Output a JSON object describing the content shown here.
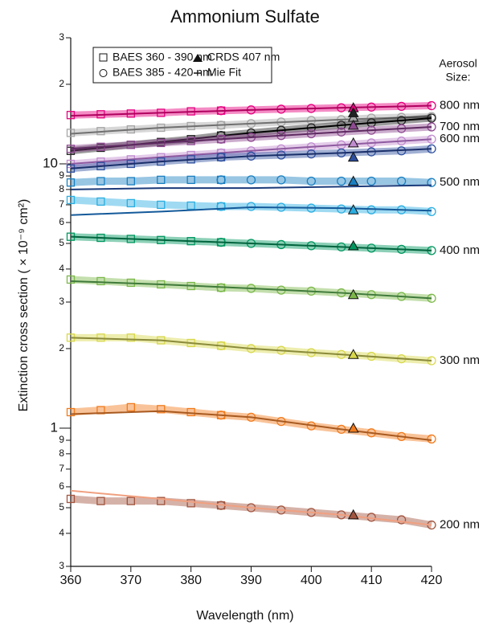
{
  "chart_data": {
    "type": "scatter",
    "title": "Ammonium Sulfate",
    "xlabel": "Wavelength (nm)",
    "ylabel": "Extinction cross section ( × 10⁻⁹ cm²)",
    "size_heading_lines": [
      "Aerosol",
      "Size:"
    ],
    "legend": [
      "BAES 360 - 390 nm",
      "BAES 385 - 420 nm",
      "CRDS 407 nm",
      "Mie Fit"
    ],
    "log_y": true,
    "xlim": [
      360,
      420
    ],
    "xticks": [
      360,
      370,
      380,
      390,
      400,
      410,
      420
    ],
    "ylim": [
      0.3,
      30
    ],
    "yticks": [
      {
        "value": 30,
        "label": "3"
      },
      {
        "value": 20,
        "label": "2"
      },
      10,
      9,
      8,
      7,
      6,
      5,
      4,
      3,
      2,
      1,
      {
        "value": 0.9,
        "label": "9"
      },
      {
        "value": 0.8,
        "label": "8"
      },
      {
        "value": 0.7,
        "label": "7"
      },
      {
        "value": 0.6,
        "label": "6"
      },
      {
        "value": 0.5,
        "label": "5"
      },
      {
        "value": 0.4,
        "label": "4"
      },
      {
        "value": 0.3,
        "label": "3"
      }
    ],
    "square_x": [
      360,
      365,
      370,
      375,
      380,
      385
    ],
    "circle_x": [
      385,
      390,
      395,
      400,
      405,
      410,
      415,
      420
    ],
    "fit_x": [
      360,
      375,
      390,
      405,
      420
    ],
    "crds_x": 407,
    "groups": [
      {
        "label": "800 nm",
        "color": "#e6007e",
        "fit_color": "#b0005f",
        "squares": [
          15.3,
          15.4,
          15.5,
          15.6,
          15.8,
          15.9
        ],
        "circles": [
          15.9,
          16.0,
          16.1,
          16.2,
          16.3,
          16.4,
          16.5,
          16.6
        ],
        "fit": [
          15.2,
          15.6,
          16.0,
          16.3,
          16.6
        ],
        "crds": 16.3
      },
      {
        "color": "#a6a6a6",
        "fit_color": "#707070",
        "squares": [
          13.1,
          13.3,
          13.5,
          13.7,
          13.9,
          14.0
        ],
        "circles": [
          14.0,
          14.2,
          14.4,
          14.6,
          14.7,
          14.9,
          15.0,
          15.1
        ],
        "fit": [
          13.0,
          13.7,
          14.2,
          14.7,
          15.1
        ],
        "crds": 15.0
      },
      {
        "color": "#222222",
        "fit_color": "#000000",
        "squares": [
          11.2,
          11.5,
          11.8,
          12.1,
          12.4,
          12.8
        ],
        "circles": [
          12.8,
          13.1,
          13.4,
          13.7,
          14.0,
          14.3,
          14.6,
          14.9
        ],
        "fit": [
          11.2,
          12.1,
          13.1,
          14.0,
          14.9
        ],
        "crds": 15.6
      },
      {
        "label": "700 nm",
        "color": "#8e4a91",
        "fit_color": "#5e2a61",
        "squares": [
          11.4,
          11.6,
          11.8,
          12.0,
          12.2,
          12.4
        ],
        "circles": [
          12.4,
          12.6,
          12.8,
          13.0,
          13.2,
          13.4,
          13.6,
          13.8
        ],
        "fit": [
          11.4,
          12.0,
          12.6,
          13.2,
          13.8
        ],
        "crds": 14.0
      },
      {
        "label": "600 nm",
        "color": "#c08ccf",
        "fit_color": "#8f5aa0",
        "squares": [
          10.0,
          10.2,
          10.4,
          10.6,
          10.8,
          11.0
        ],
        "circles": [
          11.0,
          11.2,
          11.4,
          11.6,
          11.8,
          12.0,
          12.2,
          12.4
        ],
        "fit": [
          10.0,
          10.6,
          11.2,
          11.8,
          12.4
        ],
        "crds": 12.0
      },
      {
        "color": "#2e4f9e",
        "fit_color": "#1a2f6a",
        "squares": [
          9.6,
          9.8,
          10.0,
          10.2,
          10.4,
          10.6
        ],
        "circles": [
          10.6,
          10.7,
          10.8,
          10.9,
          11.0,
          11.1,
          11.2,
          11.4
        ],
        "fit": [
          9.6,
          10.2,
          10.7,
          11.0,
          11.4
        ],
        "crds": 10.6
      },
      {
        "label": "500 nm",
        "color": "#1a80c2",
        "fit_color": "#1b3b7a",
        "squares": [
          8.5,
          8.6,
          8.6,
          8.7,
          8.7,
          8.7
        ],
        "circles": [
          8.7,
          8.7,
          8.7,
          8.6,
          8.6,
          8.6,
          8.6,
          8.5
        ],
        "fit": [
          8.0,
          8.1,
          8.1,
          8.2,
          8.3
        ],
        "crds": 8.6
      },
      {
        "color": "#2aaee2",
        "fit_color": "#145a9a",
        "squares": [
          7.3,
          7.2,
          7.1,
          7.0,
          6.95,
          6.9
        ],
        "circles": [
          6.9,
          6.9,
          6.85,
          6.8,
          6.75,
          6.7,
          6.7,
          6.6
        ],
        "fit": [
          6.4,
          6.6,
          6.85,
          6.8,
          6.65
        ],
        "crds": 6.7
      },
      {
        "label": "400 nm",
        "color": "#00975f",
        "fit_color": "#00643e",
        "squares": [
          5.3,
          5.25,
          5.2,
          5.15,
          5.1,
          5.05
        ],
        "circles": [
          5.05,
          5.0,
          4.95,
          4.9,
          4.85,
          4.8,
          4.75,
          4.7
        ],
        "fit": [
          5.3,
          5.15,
          5.0,
          4.85,
          4.7
        ],
        "crds": 4.9
      },
      {
        "color": "#7cb84a",
        "fit_color": "#3f7a3a",
        "squares": [
          3.65,
          3.6,
          3.55,
          3.5,
          3.45,
          3.4
        ],
        "circles": [
          3.4,
          3.38,
          3.33,
          3.3,
          3.25,
          3.2,
          3.15,
          3.1
        ],
        "fit": [
          3.6,
          3.5,
          3.38,
          3.25,
          3.1
        ],
        "crds": 3.2
      },
      {
        "label": "300 nm",
        "color": "#d8d84c",
        "fit_color": "#8a8a3a",
        "squares": [
          2.2,
          2.2,
          2.2,
          2.15,
          2.1,
          2.05
        ],
        "circles": [
          2.05,
          2.0,
          1.97,
          1.93,
          1.9,
          1.87,
          1.83,
          1.8
        ],
        "fit": [
          2.2,
          2.15,
          2.0,
          1.9,
          1.8
        ],
        "crds": 1.9
      },
      {
        "color": "#f27b1c",
        "fit_color": "#a85a20",
        "squares": [
          1.15,
          1.17,
          1.2,
          1.18,
          1.15,
          1.12
        ],
        "circles": [
          1.12,
          1.1,
          1.06,
          1.02,
          0.99,
          0.96,
          0.93,
          0.91
        ],
        "fit": [
          1.13,
          1.16,
          1.1,
          0.99,
          0.9
        ],
        "crds": 1.0
      },
      {
        "label": "200 nm",
        "color": "#a2553f",
        "fit_color": "#f0a080",
        "squares": [
          0.54,
          0.53,
          0.53,
          0.53,
          0.52,
          0.51
        ],
        "circles": [
          0.51,
          0.5,
          0.49,
          0.48,
          0.47,
          0.46,
          0.45,
          0.43
        ],
        "fit": [
          0.58,
          0.54,
          0.5,
          0.47,
          0.43
        ],
        "crds": 0.47
      }
    ]
  }
}
